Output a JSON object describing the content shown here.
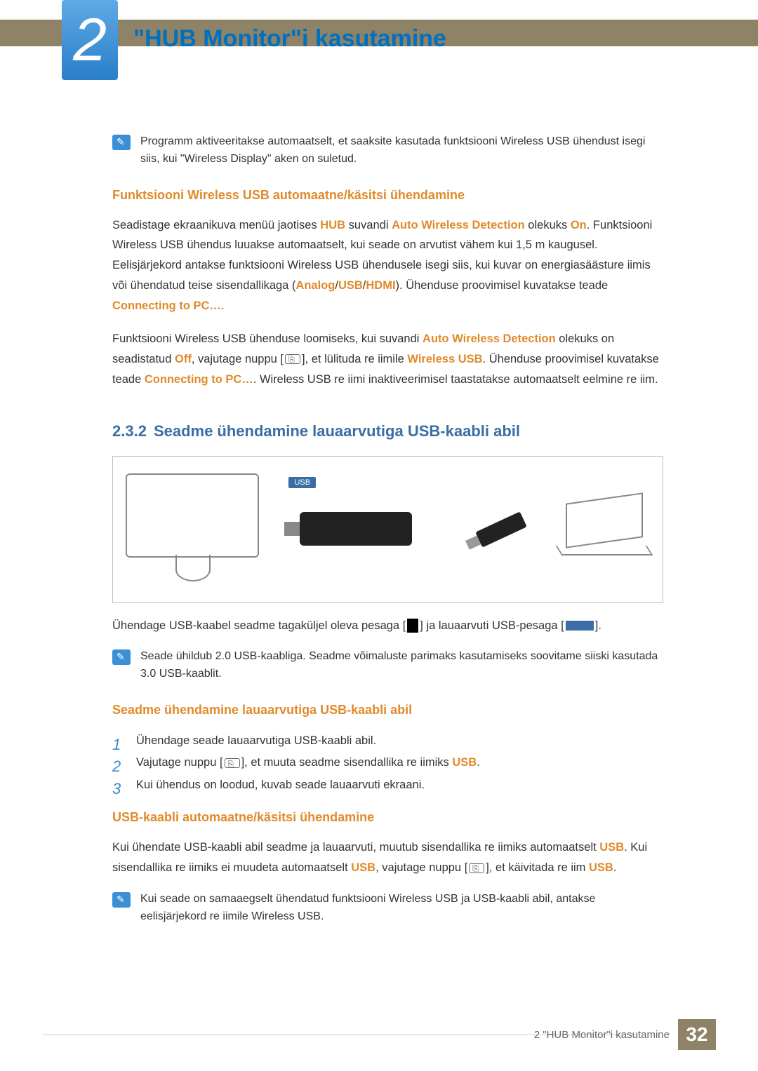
{
  "chapter": {
    "number": "2",
    "title": "\"HUB Monitor\"i kasutamine"
  },
  "note1": "Programm aktiveeritakse automaatselt, et saaksite kasutada funktsiooni Wireless USB ühendust isegi siis, kui \"Wireless Display\" aken on suletud.",
  "sec1": {
    "heading": "Funktsiooni Wireless USB automaatne/käsitsi ühendamine",
    "p1_a": "Seadistage ekraanikuva menüü jaotises ",
    "p1_hub": "HUB",
    "p1_b": " suvandi ",
    "p1_awd": "Auto Wireless Detection",
    "p1_c": " olekuks ",
    "p1_on": "On",
    "p1_d": ". Funktsiooni Wireless USB ühendus luuakse automaatselt, kui seade on arvutist vähem kui 1,5 m kaugusel. Eelisjärjekord antakse funktsiooni Wireless USB ühendusele isegi siis, kui kuvar on energiasäästure iimis või ühendatud teise sisendallikaga (",
    "p1_analog": "Analog",
    "p1_slash1": "/",
    "p1_usb": "USB",
    "p1_slash2": "/",
    "p1_hdmi": "HDMI",
    "p1_e": "). Ühenduse proovimisel kuvatakse teade ",
    "p1_conn": "Connecting to PC…",
    "p1_f": ".",
    "p2_a": "Funktsiooni Wireless USB ühenduse loomiseks, kui suvandi ",
    "p2_awd": "Auto Wireless Detection",
    "p2_b": " olekuks on seadistatud ",
    "p2_off": "Off",
    "p2_c": ", vajutage nuppu [",
    "p2_d": "], et lülituda re iimile ",
    "p2_wusb": "Wireless USB",
    "p2_e": ". Ühenduse proovimisel kuvatakse teade ",
    "p2_conn": "Connecting to PC…",
    "p2_f": ". Wireless USB re iimi inaktiveerimisel taastatakse automaatselt eelmine re iim."
  },
  "sec2": {
    "number": "2.3.2",
    "title": "Seadme ühendamine lauaarvutiga USB-kaabli abil",
    "diagram_usb_label": "USB",
    "caption_a": "Ühendage USB-kaabel seadme tagaküljel oleva pesaga [",
    "caption_b": "] ja lauaarvuti USB-pesaga [",
    "caption_c": "].",
    "note2": "Seade ühildub 2.0 USB-kaabliga. Seadme võimaluste parimaks kasutamiseks soovitame siiski kasutada 3.0 USB-kaablit.",
    "sub1": {
      "heading": "Seadme ühendamine lauaarvutiga USB-kaabli abil",
      "steps": [
        "Ühendage seade lauaarvutiga USB-kaabli abil.",
        {
          "a": "Vajutage nuppu [",
          "b": "], et muuta seadme sisendallika re iimiks ",
          "usb": "USB",
          "c": "."
        },
        "Kui ühendus on loodud, kuvab seade lauaarvuti ekraani."
      ]
    },
    "sub2": {
      "heading": "USB-kaabli automaatne/käsitsi ühendamine",
      "p_a": "Kui ühendate USB-kaabli abil seadme ja lauaarvuti, muutub sisendallika re iimiks automaatselt ",
      "p_usb1": "USB",
      "p_b": ". Kui sisendallika re iimiks ei muudeta automaatselt ",
      "p_usb2": "USB",
      "p_c": ", vajutage nuppu [",
      "p_d": "], et käivitada re iim ",
      "p_usb3": "USB",
      "p_e": "."
    },
    "note3": "Kui seade on samaaegselt ühendatud funktsiooni Wireless USB ja USB-kaabli abil, antakse eelisjärjekord re iimile Wireless USB."
  },
  "footer": {
    "text": "2 \"HUB Monitor\"i kasutamine",
    "page": "32"
  },
  "colors": {
    "accent_blue": "#0070c0",
    "accent_orange": "#e08a2a",
    "header_bar": "#8f8367",
    "section_blue": "#3a6ea5"
  }
}
